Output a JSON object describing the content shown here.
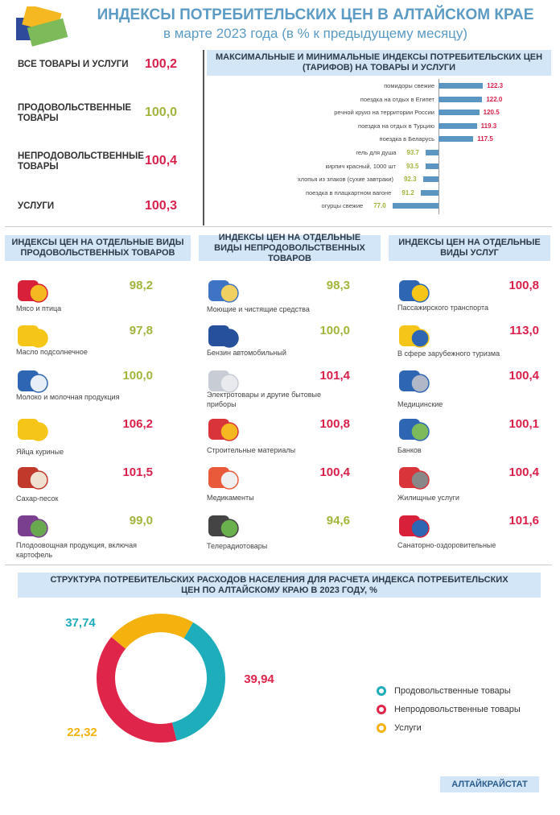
{
  "header": {
    "title": "ИНДЕКСЫ ПОТРЕБИТЕЛЬСКИХ ЦЕН  В  АЛТАЙСКОМ КРАЕ",
    "subtitle": "в марте 2023 года (в % к предыдущему месяцу)",
    "logo_icon": "price-tags-icon"
  },
  "colors": {
    "up": "#d8204a",
    "down": "#a3b43c",
    "title": "#5b9bc4",
    "bar": "#5b96c2",
    "band": "#d2e6f7"
  },
  "summary": [
    {
      "label": "ВСЕ ТОВАРЫ И УСЛУГИ",
      "value": "100,2"
    },
    {
      "label": "ПРОДОВОЛЬСТВЕННЫЕ ТОВАРЫ",
      "value": "100,0"
    },
    {
      "label": "НЕПРОДОВОЛЬСТВЕННЫЕ ТОВАРЫ",
      "value": "100,4"
    },
    {
      "label": "УСЛУГИ",
      "value": "100,3"
    }
  ],
  "chart_data": {
    "type": "bar",
    "orientation": "horizontal",
    "title": "МАКСИМАЛЬНЫЕ И МИНИМАЛЬНЫЕ ИНДЕКСЫ  ПОТРЕБИТЕЛЬСКИХ ЦЕН (ТАРИФОВ) НА ТОВАРЫ  И УСЛУГИ",
    "baseline": 100,
    "categories": [
      "помидоры  свежие",
      "поездка  на  отдых в Египет",
      "речной  круиз на территории России",
      "поездка  на  отдых  в Турцию",
      "поездка  в Беларусь",
      "гель для  душа",
      "кирпич красный,  1000  шт",
      "хлопья из злаков (сухие завтраки)",
      "поездка  в плацкартном  вагоне",
      "огурцы  свежие"
    ],
    "values": [
      122.3,
      122.0,
      120.5,
      119.3,
      117.5,
      93.7,
      93.5,
      92.3,
      91.2,
      77.0
    ],
    "labels": [
      "122.3",
      "122.0",
      "120.5",
      "119.3",
      "117.5",
      "93.7",
      "93.5",
      "92.3",
      "91.2",
      "77.0"
    ]
  },
  "columns": [
    {
      "title": "ИНДЕКСЫ ЦЕН НА ОТДЕЛЬНЫЕ ВИДЫ ПРОДОВОЛЬСТВЕННЫХ ТОВАРОВ",
      "items": [
        {
          "label": "Мясо и птица",
          "value": "98,2",
          "icon": "meat-icon"
        },
        {
          "label": "Масло подсолнечное",
          "value": "97,8",
          "icon": "oil-drop-icon"
        },
        {
          "label": "Молоко и молочная продукция",
          "value": "100,0",
          "icon": "milk-icon"
        },
        {
          "label": "Яйца куриные",
          "value": "106,2",
          "icon": "eggs-icon"
        },
        {
          "label": "Сахар-песок",
          "value": "101,5",
          "icon": "sugar-icon"
        },
        {
          "label": "Плодоовощная продукция, включая картофель",
          "value": "99,0",
          "icon": "vegetables-icon"
        }
      ]
    },
    {
      "title": "ИНДЕКСЫ ЦЕН НА ОТДЕЛЬНЫЕ ВИДЫ НЕПРОДОВОЛЬСТВЕННЫХ ТОВАРОВ",
      "items": [
        {
          "label": "Моющие и чистящие средства",
          "value": "98,3",
          "icon": "detergent-icon"
        },
        {
          "label": "Бензин автомобильный",
          "value": "100,0",
          "icon": "canister-icon"
        },
        {
          "label": "Электротовары и другие бытовые  приборы",
          "value": "101,4",
          "icon": "kettle-icon"
        },
        {
          "label": "Строительные  материалы",
          "value": "100,8",
          "icon": "bricks-icon"
        },
        {
          "label": "Медикаменты",
          "value": "100,4",
          "icon": "medicine-icon"
        },
        {
          "label": "Телерадиотовары",
          "value": "94,6",
          "icon": "tv-icon"
        }
      ]
    },
    {
      "title": "ИНДЕКСЫ ЦЕН НА ОТДЕЛЬНЫЕ ВИДЫ УСЛУГ",
      "items": [
        {
          "label": "Пассажирского транспорта",
          "value": "100,8",
          "icon": "bus-icon"
        },
        {
          "label": "В сфере  зарубежного туризма",
          "value": "113,0",
          "icon": "tour-bus-icon"
        },
        {
          "label": "Медицинские",
          "value": "100,4",
          "icon": "stethoscope-icon"
        },
        {
          "label": "Банков",
          "value": "100,1",
          "icon": "bank-card-icon"
        },
        {
          "label": "Жилищные  услуги",
          "value": "100,4",
          "icon": "trowel-icon"
        },
        {
          "label": "Санаторно-оздоровительные",
          "value": "101,6",
          "icon": "sanatorium-icon"
        }
      ]
    }
  ],
  "structure": {
    "title": "СТРУКТУРА ПОТРЕБИТЕЛЬСКИХ РАСХОДОВ  НАСЕЛЕНИЯ ДЛЯ РАСЧЕТА ИНДЕКСА ПОТРЕБИТЕЛЬСКИХ ЦЕН ПО АЛТАЙСКОМУ  КРАЮ В 2023 ГОДУ, %",
    "chart_data": {
      "type": "pie",
      "donut": true,
      "series": [
        {
          "name": "Продовольственные товары",
          "value": 37.74,
          "label": "37,74",
          "color": "#1eadbb"
        },
        {
          "name": "Непродовольственные товары",
          "value": 39.94,
          "label": "39,94",
          "color": "#e0254a"
        },
        {
          "name": "Услуги",
          "value": 22.32,
          "label": "22,32",
          "color": "#f5b20f"
        }
      ]
    }
  },
  "footer": {
    "source": "АЛТАЙКРАЙСТАТ"
  }
}
